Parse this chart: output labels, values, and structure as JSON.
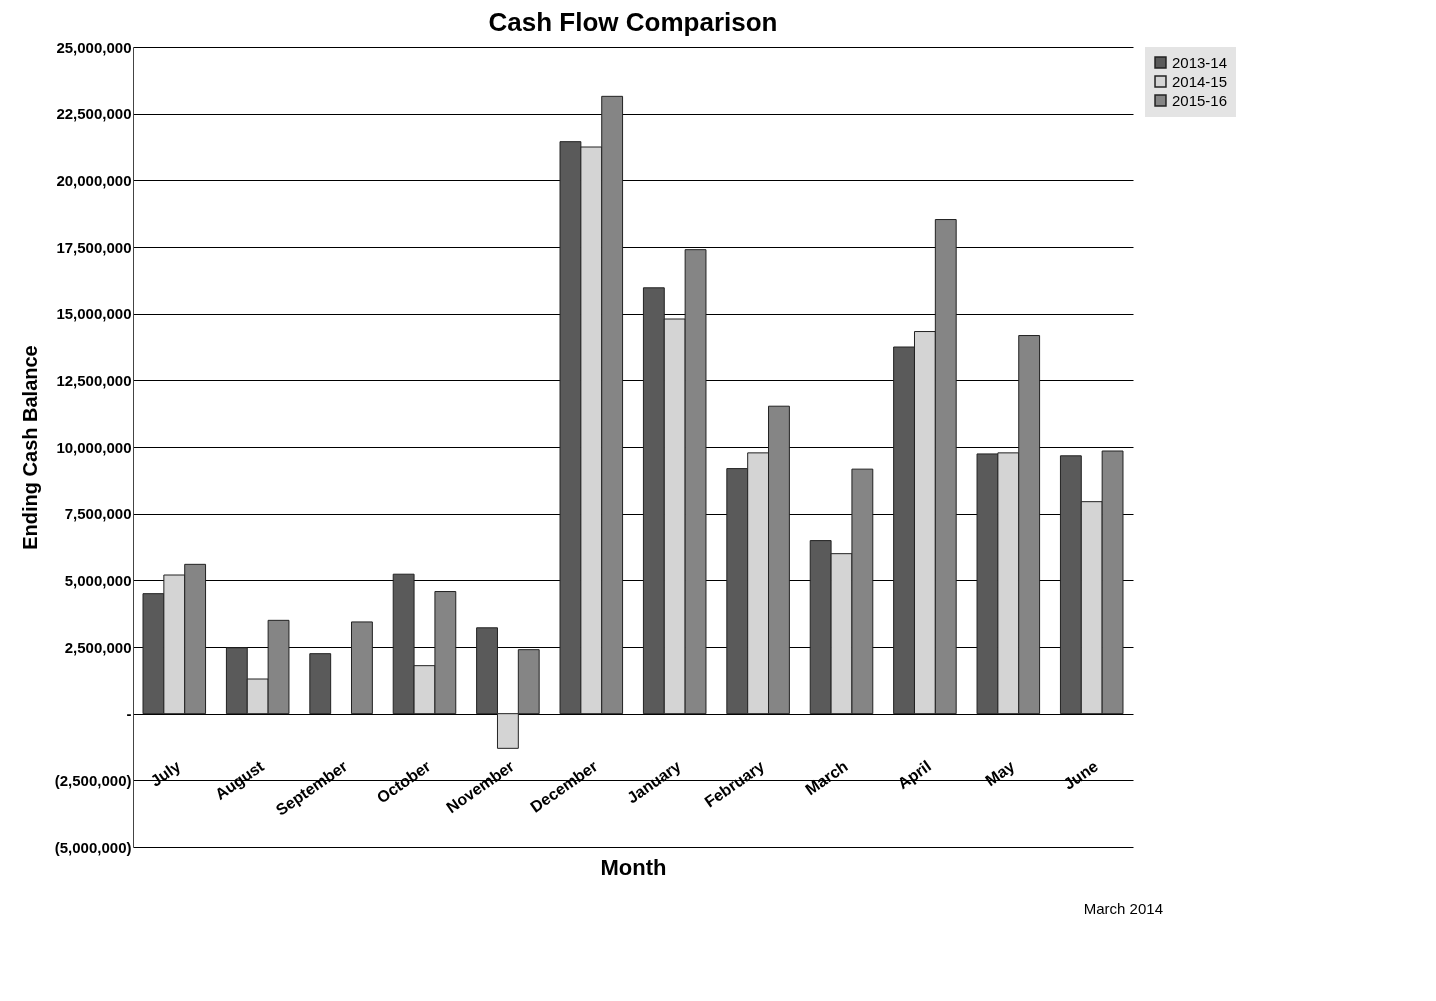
{
  "chart_data": {
    "type": "bar",
    "title": "Cash Flow Comparison",
    "xlabel": "Month",
    "ylabel": "Ending Cash Balance",
    "categories": [
      "July",
      "August",
      "September",
      "October",
      "November",
      "December",
      "January",
      "February",
      "March",
      "April",
      "May",
      "June"
    ],
    "series": [
      {
        "name": "2013-14",
        "color": "#5a5a5a",
        "values": [
          4500000,
          2470000,
          2250000,
          5230000,
          3220000,
          21450000,
          15970000,
          9190000,
          6490000,
          13750000,
          9740000,
          9670000
        ]
      },
      {
        "name": "2014-15",
        "color": "#d4d4d4",
        "values": [
          5200000,
          1300000,
          null,
          1800000,
          -1300000,
          21250000,
          14800000,
          9780000,
          6000000,
          14330000,
          9780000,
          7950000
        ]
      },
      {
        "name": "2015-16",
        "color": "#858585",
        "values": [
          5600000,
          3500000,
          3440000,
          4580000,
          2400000,
          23150000,
          17400000,
          11530000,
          9170000,
          18530000,
          14180000,
          9850000
        ]
      }
    ],
    "ylim": [
      -5000000,
      25000000
    ],
    "yticks": [
      {
        "value": -5000000,
        "label": "(5,000,000)"
      },
      {
        "value": -2500000,
        "label": "(2,500,000)"
      },
      {
        "value": 0,
        "label": "-"
      },
      {
        "value": 2500000,
        "label": "2,500,000"
      },
      {
        "value": 5000000,
        "label": "5,000,000"
      },
      {
        "value": 7500000,
        "label": "7,500,000"
      },
      {
        "value": 10000000,
        "label": "10,000,000"
      },
      {
        "value": 12500000,
        "label": "12,500,000"
      },
      {
        "value": 15000000,
        "label": "15,000,000"
      },
      {
        "value": 17500000,
        "label": "17,500,000"
      },
      {
        "value": 20000000,
        "label": "20,000,000"
      },
      {
        "value": 22500000,
        "label": "22,500,000"
      },
      {
        "value": 25000000,
        "label": "25,000,000"
      }
    ],
    "grid": "y",
    "legend": "right",
    "annotations": [
      "March 2014"
    ]
  }
}
